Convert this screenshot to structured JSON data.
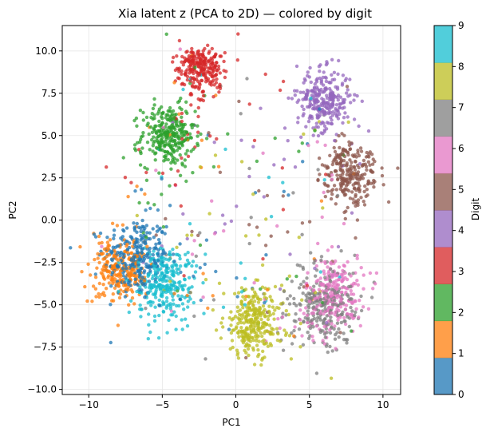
{
  "chart_data": {
    "type": "scatter",
    "title": "Xia latent z (PCA to 2D) — colored by digit",
    "xlabel": "PC1",
    "ylabel": "PC2",
    "xlim": [
      -11.8,
      11.2
    ],
    "ylim": [
      -10.3,
      11.5
    ],
    "xticks": [
      -10,
      -5,
      0,
      5,
      10
    ],
    "xtick_labels": [
      "−10",
      "−5",
      "0",
      "5",
      "10"
    ],
    "yticks": [
      -10.0,
      -7.5,
      -5.0,
      -2.5,
      0.0,
      2.5,
      5.0,
      7.5,
      10.0
    ],
    "ytick_labels": [
      "−10.0",
      "−7.5",
      "−5.0",
      "−2.5",
      "0.0",
      "2.5",
      "5.0",
      "7.5",
      "10.0"
    ],
    "grid": true,
    "colorbar": {
      "label": "Digit",
      "ticks": [
        "0",
        "1",
        "2",
        "3",
        "4",
        "5",
        "6",
        "7",
        "8",
        "9"
      ],
      "colors": [
        "#1f77b4",
        "#ff7f0e",
        "#2ca02c",
        "#d62728",
        "#9467bd",
        "#8c564b",
        "#e377c2",
        "#7f7f7f",
        "#bcbd22",
        "#17becf"
      ]
    },
    "clusters": [
      {
        "digit": 0,
        "center": [
          -6.8,
          -2.2
        ],
        "spread": [
          1.1,
          1.2
        ],
        "n": 260
      },
      {
        "digit": 1,
        "center": [
          -8.0,
          -2.9
        ],
        "spread": [
          0.9,
          0.9
        ],
        "n": 220
      },
      {
        "digit": 2,
        "center": [
          -4.6,
          5.0
        ],
        "spread": [
          0.9,
          0.9
        ],
        "n": 280
      },
      {
        "digit": 3,
        "center": [
          -2.4,
          9.0
        ],
        "spread": [
          0.8,
          0.7
        ],
        "n": 240
      },
      {
        "digit": 4,
        "center": [
          6.0,
          7.1
        ],
        "spread": [
          0.9,
          0.9
        ],
        "n": 270
      },
      {
        "digit": 5,
        "center": [
          7.8,
          2.7
        ],
        "spread": [
          0.9,
          0.9
        ],
        "n": 240
      },
      {
        "digit": 6,
        "center": [
          6.7,
          -4.4
        ],
        "spread": [
          1.0,
          1.1
        ],
        "n": 230
      },
      {
        "digit": 7,
        "center": [
          5.9,
          -5.2
        ],
        "spread": [
          1.2,
          1.2
        ],
        "n": 230
      },
      {
        "digit": 8,
        "center": [
          1.2,
          -6.1
        ],
        "spread": [
          1.0,
          1.0
        ],
        "n": 280
      },
      {
        "digit": 9,
        "center": [
          -4.9,
          -3.7
        ],
        "spread": [
          0.9,
          1.1
        ],
        "n": 260
      }
    ],
    "scatter_noise_points_per_digit": 45
  }
}
